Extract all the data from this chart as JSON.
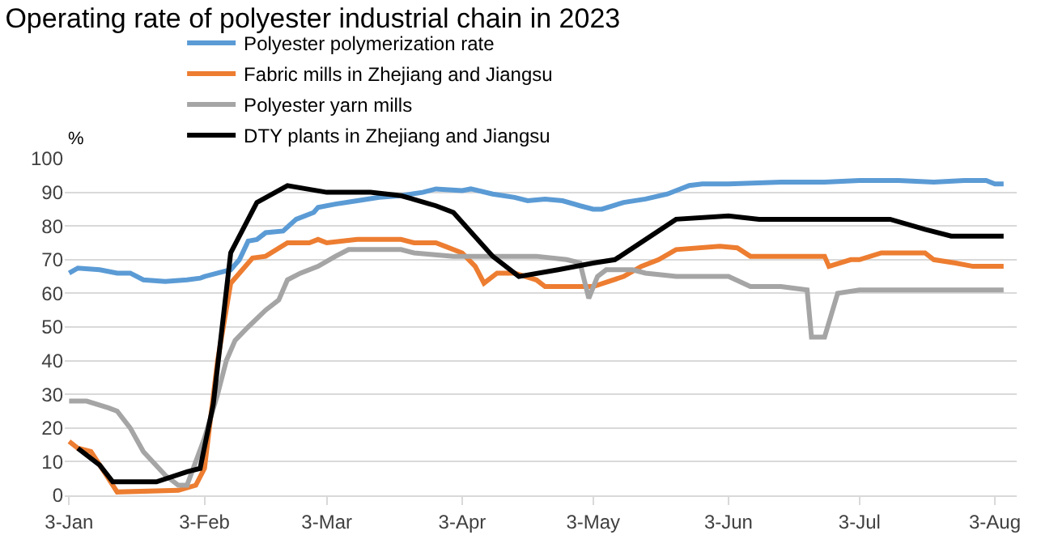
{
  "chart_data": {
    "type": "line",
    "title": "Operating rate of polyester industrial chain in 2023",
    "ylabel": "%",
    "xlim": [
      "2023-01-02",
      "2023-08-08"
    ],
    "ylim": [
      0,
      100
    ],
    "yticks": [
      0,
      10,
      20,
      30,
      40,
      50,
      60,
      70,
      80,
      90,
      100
    ],
    "xticks": [
      {
        "value": "2023-01-03",
        "label": "3-Jan"
      },
      {
        "value": "2023-02-03",
        "label": "3-Feb"
      },
      {
        "value": "2023-03-03",
        "label": "3-Mar"
      },
      {
        "value": "2023-04-03",
        "label": "3-Apr"
      },
      {
        "value": "2023-05-03",
        "label": "3-May"
      },
      {
        "value": "2023-06-03",
        "label": "3-Jun"
      },
      {
        "value": "2023-07-03",
        "label": "3-Jul"
      },
      {
        "value": "2023-08-03",
        "label": "3-Aug"
      }
    ],
    "grid": "y",
    "legend": "top",
    "marker": "none",
    "line_style": "solid",
    "series": [
      {
        "name": "Polyester polymerization rate",
        "color": "#5b9bd5",
        "x": [
          "2023-01-03",
          "2023-01-05",
          "2023-01-10",
          "2023-01-14",
          "2023-01-17",
          "2023-01-20",
          "2023-01-25",
          "2023-01-30",
          "2023-02-02",
          "2023-02-03",
          "2023-02-06",
          "2023-02-09",
          "2023-02-11",
          "2023-02-13",
          "2023-02-15",
          "2023-02-17",
          "2023-02-21",
          "2023-02-24",
          "2023-02-28",
          "2023-03-01",
          "2023-03-05",
          "2023-03-10",
          "2023-03-15",
          "2023-03-20",
          "2023-03-25",
          "2023-03-28",
          "2023-04-03",
          "2023-04-05",
          "2023-04-10",
          "2023-04-15",
          "2023-04-18",
          "2023-04-22",
          "2023-04-26",
          "2023-04-30",
          "2023-05-03",
          "2023-05-05",
          "2023-05-10",
          "2023-05-15",
          "2023-05-20",
          "2023-05-25",
          "2023-05-28",
          "2023-06-03",
          "2023-06-15",
          "2023-06-25",
          "2023-07-03",
          "2023-07-12",
          "2023-07-20",
          "2023-07-27",
          "2023-08-01",
          "2023-08-03",
          "2023-08-05"
        ],
        "values": [
          66,
          67.5,
          67,
          66,
          66,
          64,
          63.5,
          64,
          64.5,
          65,
          66,
          67,
          70,
          75.5,
          76,
          78,
          78.5,
          82,
          84,
          85.5,
          86.5,
          87.5,
          88.5,
          89,
          90,
          91,
          90.5,
          91,
          89.5,
          88.5,
          87.5,
          88,
          87.5,
          86,
          85,
          85,
          87,
          88,
          89.5,
          92,
          92.5,
          92.5,
          93,
          93,
          93.5,
          93.5,
          93,
          93.5,
          93.5,
          92.5,
          92.5
        ]
      },
      {
        "name": "Fabric mills in Zhejiang and Jiangsu",
        "color": "#ed7d31",
        "x": [
          "2023-01-03",
          "2023-01-05",
          "2023-01-08",
          "2023-01-12",
          "2023-01-14",
          "2023-01-28",
          "2023-02-01",
          "2023-02-03",
          "2023-02-06",
          "2023-02-09",
          "2023-02-14",
          "2023-02-17",
          "2023-02-22",
          "2023-02-27",
          "2023-03-01",
          "2023-03-03",
          "2023-03-10",
          "2023-03-20",
          "2023-03-23",
          "2023-03-28",
          "2023-03-30",
          "2023-04-03",
          "2023-04-06",
          "2023-04-08",
          "2023-04-11",
          "2023-04-15",
          "2023-04-20",
          "2023-04-22",
          "2023-04-30",
          "2023-05-03",
          "2023-05-10",
          "2023-05-14",
          "2023-05-18",
          "2023-05-22",
          "2023-06-01",
          "2023-06-05",
          "2023-06-08",
          "2023-06-25",
          "2023-06-26",
          "2023-07-01",
          "2023-07-03",
          "2023-07-08",
          "2023-07-18",
          "2023-07-20",
          "2023-07-25",
          "2023-07-29",
          "2023-08-05"
        ],
        "values": [
          16,
          14,
          13,
          5,
          1,
          1.5,
          3,
          8,
          40,
          63,
          70.5,
          71,
          75,
          75,
          76,
          75,
          76,
          76,
          75,
          75,
          74,
          72,
          68,
          63,
          66,
          66,
          64,
          62,
          62,
          62,
          65,
          68,
          70,
          73,
          74,
          73.5,
          71,
          71,
          68,
          70,
          70,
          72,
          72,
          70,
          69,
          68,
          68
        ]
      },
      {
        "name": "Polyester yarn mills",
        "color": "#a5a5a5",
        "x": [
          "2023-01-03",
          "2023-01-07",
          "2023-01-12",
          "2023-01-14",
          "2023-01-17",
          "2023-01-20",
          "2023-01-25",
          "2023-01-28",
          "2023-01-30",
          "2023-02-01",
          "2023-02-03",
          "2023-02-06",
          "2023-02-08",
          "2023-02-10",
          "2023-02-13",
          "2023-02-17",
          "2023-02-20",
          "2023-02-22",
          "2023-02-25",
          "2023-03-01",
          "2023-03-05",
          "2023-03-08",
          "2023-03-20",
          "2023-03-23",
          "2023-04-01",
          "2023-04-10",
          "2023-04-20",
          "2023-04-27",
          "2023-04-30",
          "2023-05-02",
          "2023-05-04",
          "2023-05-06",
          "2023-05-12",
          "2023-05-15",
          "2023-05-22",
          "2023-06-03",
          "2023-06-08",
          "2023-06-15",
          "2023-06-21",
          "2023-06-22",
          "2023-06-25",
          "2023-06-28",
          "2023-07-03",
          "2023-07-25",
          "2023-08-05"
        ],
        "values": [
          28,
          28,
          26,
          25,
          20,
          13,
          6,
          3,
          3,
          10,
          17,
          30,
          40,
          46,
          50,
          55,
          58,
          64,
          66,
          68,
          71,
          73,
          73,
          72,
          71,
          71,
          71,
          70,
          69,
          58.5,
          65,
          67,
          67,
          66,
          65,
          65,
          62,
          62,
          61,
          47,
          47,
          60,
          61,
          61,
          61
        ]
      },
      {
        "name": "DTY plants in Zhejiang and Jiangsu",
        "color": "#000000",
        "x": [
          "2023-01-05",
          "2023-01-10",
          "2023-01-13",
          "2023-01-23",
          "2023-01-30",
          "2023-02-02",
          "2023-02-05",
          "2023-02-09",
          "2023-02-15",
          "2023-02-22",
          "2023-03-03",
          "2023-03-13",
          "2023-03-20",
          "2023-03-28",
          "2023-04-01",
          "2023-04-10",
          "2023-04-16",
          "2023-04-25",
          "2023-05-03",
          "2023-05-08",
          "2023-05-22",
          "2023-06-03",
          "2023-06-10",
          "2023-07-03",
          "2023-07-10",
          "2023-07-18",
          "2023-07-24",
          "2023-08-05"
        ],
        "values": [
          14,
          9,
          4,
          4,
          7,
          8,
          27,
          72,
          87,
          92,
          90,
          90,
          89,
          86,
          84,
          71,
          65,
          67,
          69,
          70,
          82,
          83,
          82,
          82,
          82,
          79,
          77,
          77
        ]
      }
    ]
  }
}
